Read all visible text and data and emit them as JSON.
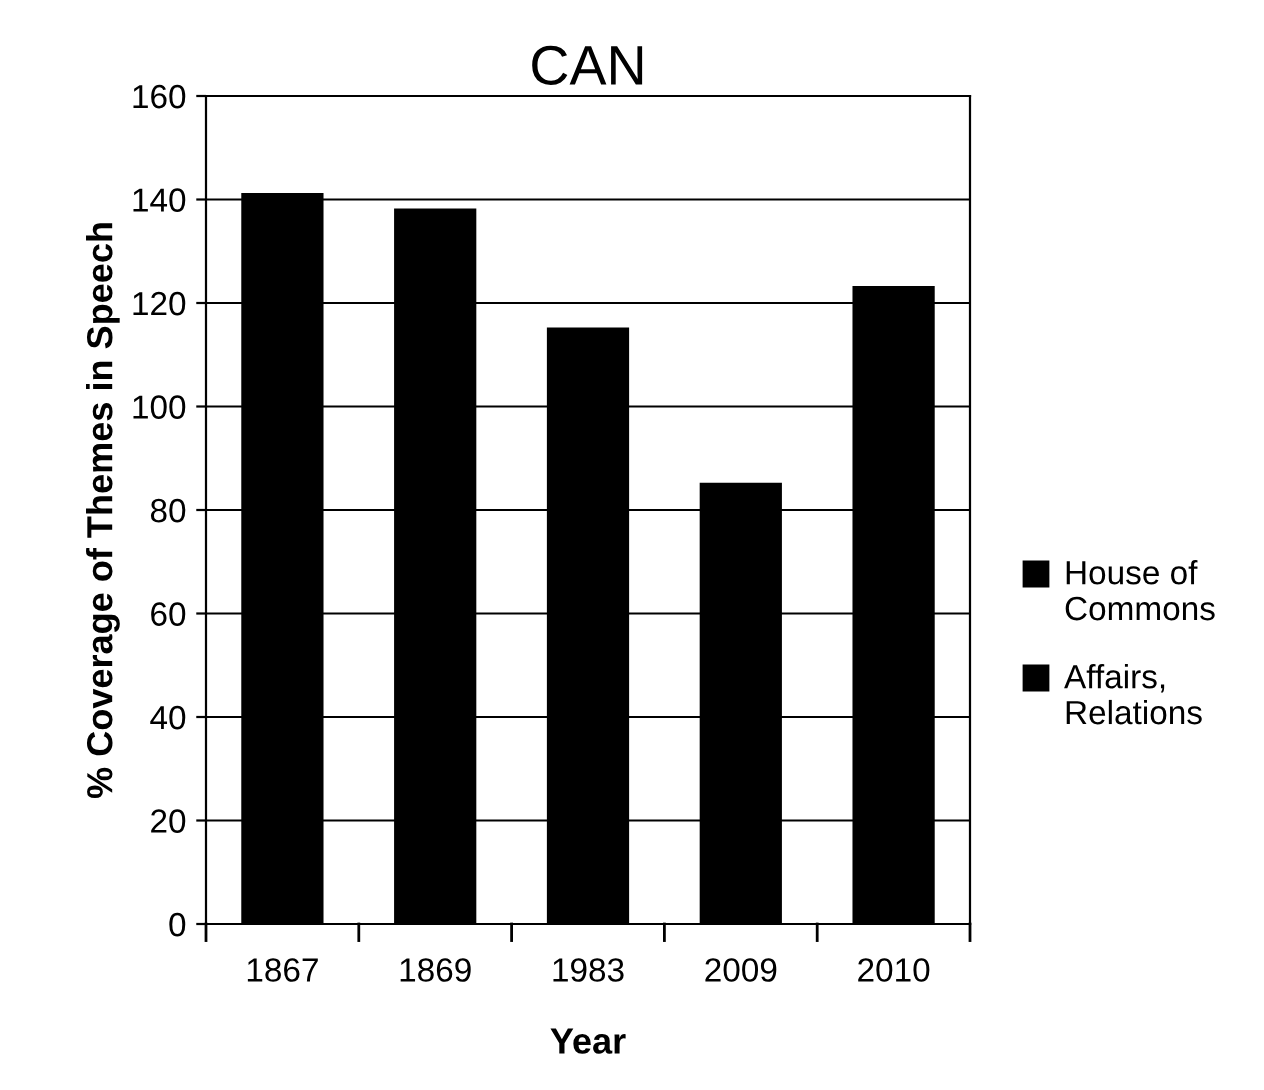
{
  "chart_data": {
    "type": "bar",
    "title": "CAN",
    "xlabel": "Year",
    "ylabel": "% Coverage of Themes in Speech",
    "categories": [
      "1867",
      "1869",
      "1983",
      "2009",
      "2010"
    ],
    "series": [
      {
        "name": "House of Commons",
        "color": "#000000",
        "values": [
          141,
          138,
          115,
          85,
          123
        ]
      },
      {
        "name": "Affairs, Relations",
        "color": "#000000",
        "values": [
          null,
          null,
          null,
          null,
          null
        ]
      }
    ],
    "stacked": true,
    "ylim": [
      0,
      160
    ],
    "yticks": [
      0,
      20,
      40,
      60,
      80,
      100,
      120,
      140,
      160
    ],
    "grid": "y",
    "legend": "right"
  }
}
